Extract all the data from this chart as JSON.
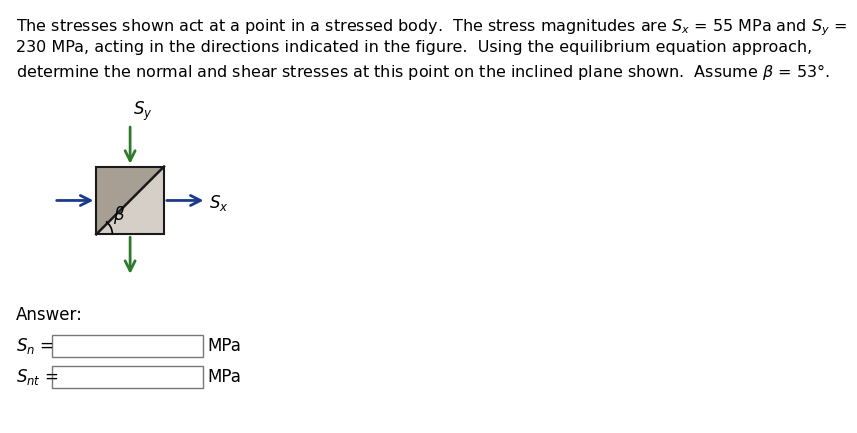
{
  "title_line1": "The stresses shown act at a point in a stressed body.  The stress magnitudes are $S_x$ = 55 MPa and $S_y$ =",
  "title_line2": "230 MPa, acting in the directions indicated in the figure.  Using the equilibrium equation approach,",
  "title_line3": "determine the normal and shear stresses at this point on the inclined plane shown.  Assume β = 53°.",
  "box_facecolor_dark": "#a89f94",
  "box_facecolor_light": "#d5cfc8",
  "box_edgecolor": "#1a1a1a",
  "arrow_color_blue": "#1a3a8c",
  "arrow_color_green": "#2d7a2d",
  "beta_label": "β",
  "sx_label": "$S_x$",
  "sy_label": "$S_y$",
  "answer_label": "Answer:",
  "mpa_label": "MPa",
  "background_color": "#ffffff",
  "title_fontsize": 11.5,
  "label_fontsize": 12,
  "answer_fontsize": 12
}
